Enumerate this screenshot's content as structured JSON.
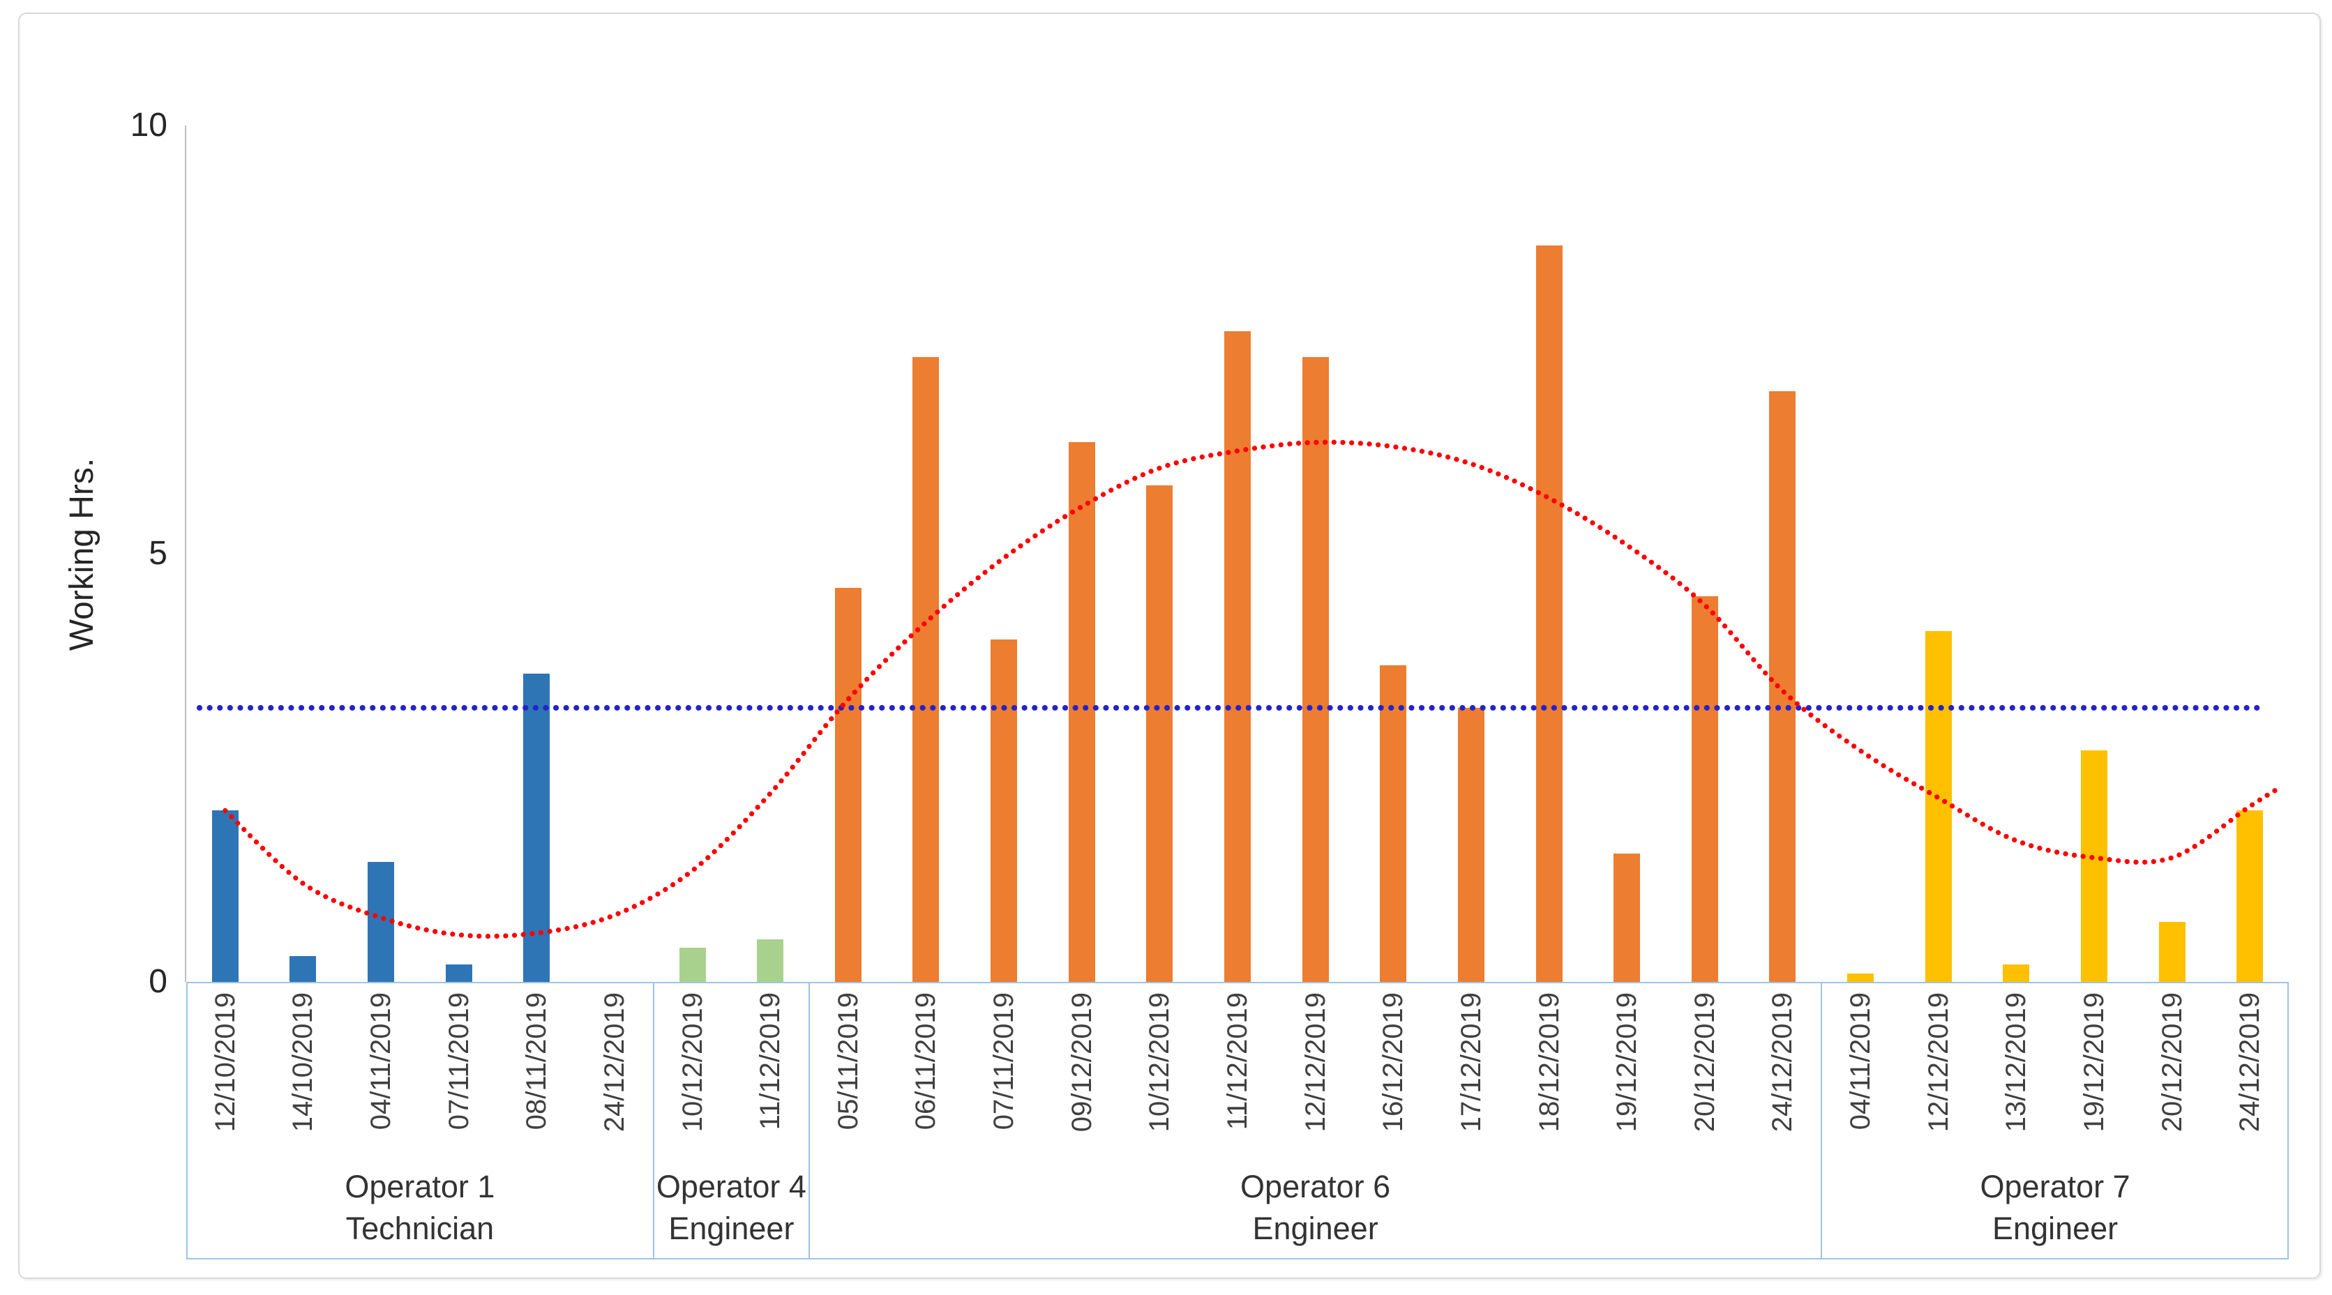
{
  "chart_data": {
    "type": "bar",
    "title": "",
    "xlabel": "",
    "ylabel": "Working Hrs.",
    "ylim": [
      0,
      10
    ],
    "yticks": [
      0,
      5,
      10
    ],
    "grid": false,
    "legend": false,
    "groups": [
      {
        "label": "Operator 1",
        "sublabel": "Technician",
        "color": "#2E75B6",
        "categories": [
          "12/10/2019",
          "14/10/2019",
          "04/11/2019",
          "07/11/2019",
          "08/11/2019",
          "24/12/2019"
        ],
        "values": [
          2.0,
          0.3,
          1.4,
          0.2,
          3.6,
          0
        ]
      },
      {
        "label": "Operator 4",
        "sublabel": "Engineer",
        "color": "#A9D18E",
        "categories": [
          "10/12/2019",
          "11/12/2019"
        ],
        "values": [
          0.4,
          0.5
        ]
      },
      {
        "label": "Operator 6",
        "sublabel": "Engineer",
        "color": "#ED7D31",
        "categories": [
          "05/11/2019",
          "06/11/2019",
          "07/11/2019",
          "09/12/2019",
          "10/12/2019",
          "11/12/2019",
          "12/12/2019",
          "16/12/2019",
          "17/12/2019",
          "18/12/2019",
          "19/12/2019",
          "20/12/2019",
          "24/12/2019"
        ],
        "values": [
          4.6,
          7.3,
          4.0,
          6.3,
          5.8,
          7.6,
          7.3,
          3.7,
          3.2,
          8.6,
          1.5,
          4.5,
          6.9
        ]
      },
      {
        "label": "Operator 7",
        "sublabel": "Engineer",
        "color": "#FFC000",
        "categories": [
          "04/11/2019",
          "12/12/2019",
          "13/12/2019",
          "19/12/2019",
          "20/12/2019",
          "24/12/2019"
        ],
        "values": [
          0.1,
          4.1,
          0.2,
          2.7,
          0.7,
          2.0
        ]
      }
    ],
    "average_line": {
      "value": 3.2,
      "color": "#2323CC",
      "style": "dotted"
    },
    "trendline": {
      "shape": "polynomial",
      "color": "#FF0000",
      "style": "dotted",
      "points_slot_value": [
        [
          0,
          2.0
        ],
        [
          1,
          1.15
        ],
        [
          2,
          0.75
        ],
        [
          3,
          0.55
        ],
        [
          4,
          0.57
        ],
        [
          5,
          0.78
        ],
        [
          6,
          1.3
        ],
        [
          7,
          2.2
        ],
        [
          8,
          3.3
        ],
        [
          9,
          4.2
        ],
        [
          10,
          4.95
        ],
        [
          11,
          5.55
        ],
        [
          12,
          6.0
        ],
        [
          13,
          6.2
        ],
        [
          14,
          6.3
        ],
        [
          15,
          6.25
        ],
        [
          16,
          6.05
        ],
        [
          17,
          5.65
        ],
        [
          18,
          5.1
        ],
        [
          19,
          4.4
        ],
        [
          20,
          3.4
        ],
        [
          21,
          2.7
        ],
        [
          22,
          2.15
        ],
        [
          23,
          1.65
        ],
        [
          24,
          1.45
        ],
        [
          25,
          1.45
        ],
        [
          26,
          2.05
        ],
        [
          26.35,
          2.25
        ]
      ]
    }
  },
  "style_colors": {
    "y_axis_line": "#BFBFBF",
    "category_box": "#9DC3E6",
    "frame_border": "#D9D9D9",
    "tick_text": "#262626",
    "label_text": "#404040"
  }
}
